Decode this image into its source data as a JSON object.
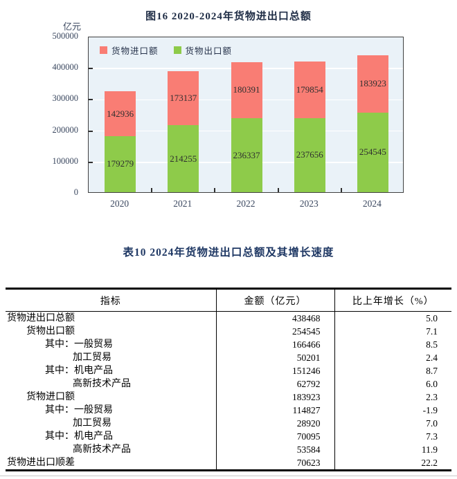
{
  "figure": {
    "title": "图16  2020-2024年货物进出口总额",
    "y_unit": "亿元",
    "legend": [
      {
        "label": "货物进口额",
        "color": "#f97d74"
      },
      {
        "label": "货物出口额",
        "color": "#8ecb4a"
      }
    ]
  },
  "chart_data": {
    "type": "bar",
    "stacked": true,
    "title": "图16  2020-2024年货物进出口总额",
    "ylabel": "亿元",
    "categories": [
      "2020",
      "2021",
      "2022",
      "2023",
      "2024"
    ],
    "series": [
      {
        "name": "货物出口额",
        "color": "#8ecb4a",
        "values": [
          179279,
          214255,
          236337,
          237656,
          254545
        ]
      },
      {
        "name": "货物进口额",
        "color": "#f97d74",
        "values": [
          142936,
          173137,
          180391,
          179854,
          183923
        ]
      }
    ],
    "ylim": [
      0,
      500000
    ],
    "yticks": [
      0,
      100000,
      200000,
      300000,
      400000,
      500000
    ],
    "grid": true,
    "grid_color": "#ffffff",
    "plot_background": "#eaf2f8",
    "legend_position": "top-left-inside"
  },
  "table": {
    "title": "表10  2024年货物进出口总额及其增长速度",
    "columns": [
      "指标",
      "金额（亿元）",
      "比上年增长（%）"
    ],
    "rows": [
      {
        "indicator": "货物进出口总额",
        "indent": 0,
        "amount": "438468",
        "growth": "5.0"
      },
      {
        "indicator": "货物出口额",
        "indent": 1,
        "amount": "254545",
        "growth": "7.1"
      },
      {
        "indicator": "其中：一般贸易",
        "indent": 2,
        "amount": "166466",
        "growth": "8.5"
      },
      {
        "indicator": "加工贸易",
        "indent": 3,
        "amount": "50201",
        "growth": "2.4"
      },
      {
        "indicator": "其中：机电产品",
        "indent": 2,
        "amount": "151246",
        "growth": "8.7"
      },
      {
        "indicator": "高新技术产品",
        "indent": 3,
        "amount": "62792",
        "growth": "6.0"
      },
      {
        "indicator": "货物进口额",
        "indent": 1,
        "amount": "183923",
        "growth": "2.3"
      },
      {
        "indicator": "其中：一般贸易",
        "indent": 2,
        "amount": "114827",
        "growth": "-1.9"
      },
      {
        "indicator": "加工贸易",
        "indent": 3,
        "amount": "28920",
        "growth": "7.0"
      },
      {
        "indicator": "其中：机电产品",
        "indent": 2,
        "amount": "70095",
        "growth": "7.3"
      },
      {
        "indicator": "高新技术产品",
        "indent": 3,
        "amount": "53584",
        "growth": "11.9"
      },
      {
        "indicator": "货物进出口顺差",
        "indent": 0,
        "amount": "70623",
        "growth": "22.2"
      }
    ]
  }
}
